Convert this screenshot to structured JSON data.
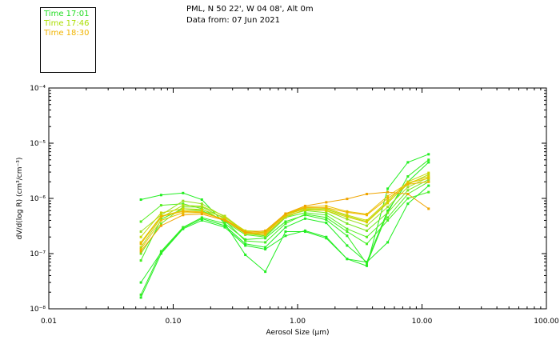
{
  "header": {
    "location": "PML, N 50 22', W 04 08', Alt 0m",
    "data_from": "Data from: 07 Jun 2021"
  },
  "legend": [
    {
      "label": "Time 17:01",
      "color": "#22dd22"
    },
    {
      "label": "Time 17:46",
      "color": "#aadd00"
    },
    {
      "label": "Time 18:30",
      "color": "#f0b400"
    }
  ],
  "chart_data": {
    "type": "line",
    "xscale": "log",
    "yscale": "log",
    "xlabel": "Aerosol Size (µm)",
    "ylabel": "dV/d(log R) (cm³/cm⁻³)",
    "xlim": [
      0.01,
      100
    ],
    "ylim": [
      1e-08,
      0.0001
    ],
    "x_ticks": [
      "0.01",
      "0.10",
      "1.00",
      "10.00",
      "100.00"
    ],
    "y_ticks": [
      "10⁻⁸",
      "10⁻⁷",
      "10⁻⁶",
      "10⁻⁵",
      "10⁻⁴"
    ],
    "x": [
      0.055,
      0.08,
      0.12,
      0.17,
      0.26,
      0.38,
      0.55,
      0.8,
      1.15,
      1.7,
      2.5,
      3.6,
      5.3,
      7.7,
      11.3
    ],
    "series": [
      {
        "color": "#22ee22",
        "values": [
          9.5e-07,
          1.15e-06,
          1.25e-06,
          9.5e-07,
          3.5e-07,
          9.5e-08,
          4.7e-08,
          2.5e-07,
          2.5e-07,
          1.9e-07,
          8e-08,
          6e-08,
          1.5e-06,
          4.5e-06,
          6.3e-06
        ]
      },
      {
        "color": "#22ee22",
        "values": [
          1.6e-08,
          1e-07,
          2.8e-07,
          4e-07,
          3e-07,
          1.4e-07,
          1.2e-07,
          2.1e-07,
          2.6e-07,
          2e-07,
          8e-08,
          7e-08,
          1.6e-07,
          8e-07,
          1.7e-06
        ]
      },
      {
        "color": "#22ee22",
        "values": [
          3e-08,
          1.05e-07,
          2.9e-07,
          4.3e-07,
          3.2e-07,
          1.5e-07,
          1.3e-07,
          3e-07,
          4.3e-07,
          3.6e-07,
          1.4e-07,
          7e-08,
          6e-07,
          2e-06,
          4.5e-06
        ]
      },
      {
        "color": "#33ee22",
        "values": [
          1.8e-08,
          1.1e-07,
          3e-07,
          4.5e-07,
          3.5e-07,
          1.8e-07,
          1.9e-07,
          3.8e-07,
          5e-07,
          4.1e-07,
          2.1e-07,
          6.5e-08,
          5.5e-07,
          2.5e-06,
          5e-06
        ]
      },
      {
        "color": "#44ee22",
        "values": [
          7.5e-08,
          4.2e-07,
          6.5e-07,
          6e-07,
          4e-07,
          1.7e-07,
          1.6e-07,
          3.5e-07,
          5.2e-07,
          4.5e-07,
          2.5e-07,
          1.5e-07,
          4e-07,
          1e-06,
          1.3e-06
        ]
      },
      {
        "color": "#55ee22",
        "values": [
          3.8e-07,
          7.5e-07,
          8e-07,
          6.5e-07,
          3.8e-07,
          2.2e-07,
          2e-07,
          4.5e-07,
          5.5e-07,
          5e-07,
          2.8e-07,
          2e-07,
          4.5e-07,
          1.2e-06,
          2e-06
        ]
      },
      {
        "color": "#77e622",
        "values": [
          1e-07,
          3.5e-07,
          7e-07,
          7e-07,
          4.3e-07,
          2.3e-07,
          2.1e-07,
          4.8e-07,
          6e-07,
          5.5e-07,
          3.5e-07,
          2.6e-07,
          5.5e-07,
          1.4e-06,
          2.2e-06
        ]
      },
      {
        "color": "#99e022",
        "values": [
          2.5e-07,
          5e-07,
          9e-07,
          8e-07,
          4.6e-07,
          2.4e-07,
          2.2e-07,
          4.5e-07,
          6.3e-07,
          6e-07,
          4.2e-07,
          3.2e-07,
          7e-07,
          1.6e-06,
          2.4e-06
        ]
      },
      {
        "color": "#b0dd11",
        "values": [
          1.3e-07,
          4.5e-07,
          7.5e-07,
          7.2e-07,
          4.8e-07,
          2.5e-07,
          2.4e-07,
          5e-07,
          6.5e-07,
          6.3e-07,
          4.8e-07,
          3.8e-07,
          8.5e-07,
          1.8e-06,
          2.7e-06
        ]
      },
      {
        "color": "#c8d800",
        "values": [
          2e-07,
          5.5e-07,
          6.5e-07,
          6.3e-07,
          4.5e-07,
          2.6e-07,
          2.5e-07,
          5.2e-07,
          6.8e-07,
          6.6e-07,
          5e-07,
          4e-07,
          9e-07,
          2e-06,
          2.9e-06
        ]
      },
      {
        "color": "#dcce00",
        "values": [
          1.6e-07,
          4.8e-07,
          6e-07,
          5.8e-07,
          4e-07,
          2.3e-07,
          2.2e-07,
          4.7e-07,
          6.2e-07,
          6e-07,
          4.6e-07,
          3.7e-07,
          8.2e-07,
          1.9e-06,
          2.5e-06
        ]
      },
      {
        "color": "#e8c200",
        "values": [
          1.2e-07,
          4e-07,
          5.5e-07,
          5.5e-07,
          4.2e-07,
          2.5e-07,
          2.4e-07,
          5.3e-07,
          7e-07,
          7.3e-07,
          5.8e-07,
          5.2e-07,
          1.1e-06,
          1.9e-06,
          2.3e-06
        ]
      },
      {
        "color": "#f0b400",
        "values": [
          1.5e-07,
          4.7e-07,
          5.8e-07,
          5.6e-07,
          4.1e-07,
          2.4e-07,
          2.3e-07,
          5e-07,
          6.8e-07,
          6.8e-07,
          5.6e-07,
          5e-07,
          1e-06,
          1.8e-06,
          2e-06
        ]
      },
      {
        "color": "#f0a500",
        "values": [
          1.1e-07,
          3.2e-07,
          5e-07,
          5.2e-07,
          4e-07,
          2.4e-07,
          2.6e-07,
          5.3e-07,
          7.3e-07,
          8.5e-07,
          9.8e-07,
          1.2e-06,
          1.3e-06,
          1.2e-06,
          6.5e-07
        ]
      }
    ]
  }
}
